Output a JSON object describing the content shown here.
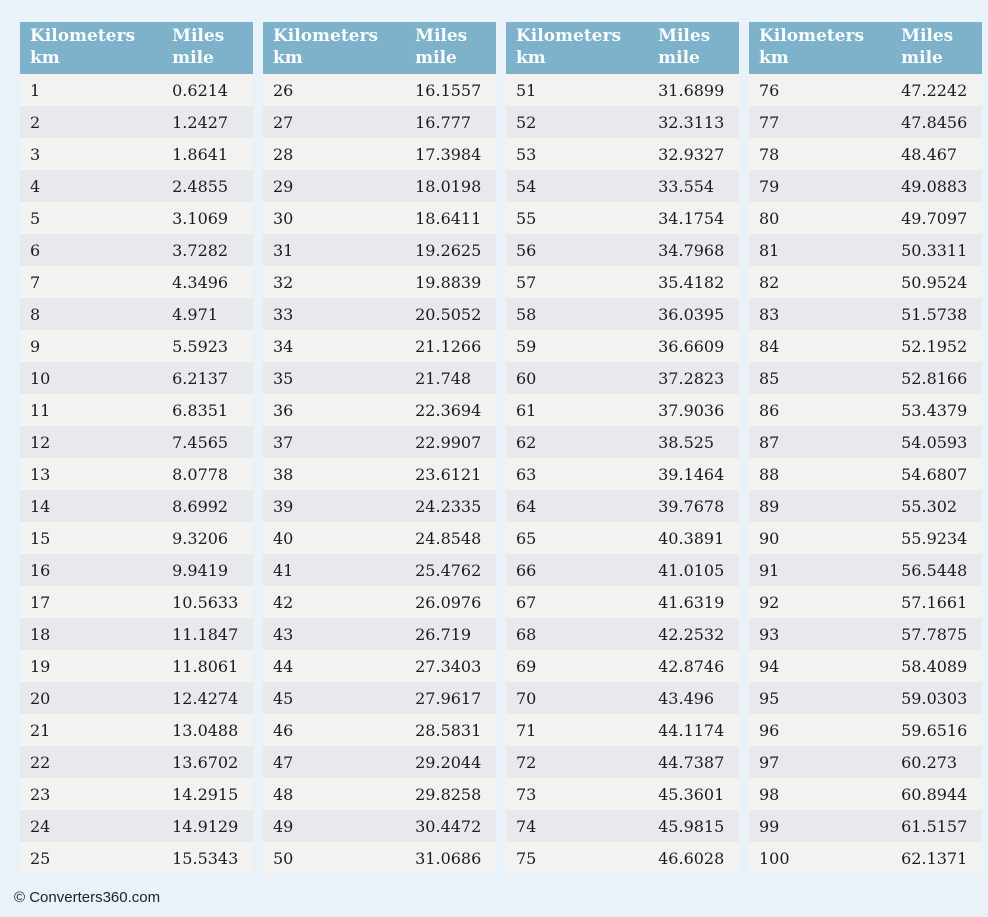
{
  "colors": {
    "page_bg": "#e9f2f8",
    "header_bg": "#7db2ca",
    "header_text": "#fafdfe",
    "row_odd": "#f2f2f0",
    "row_even": "#e8e9ed",
    "cell_text": "#1c1c1c",
    "footer_text": "#222222"
  },
  "column_headers": {
    "kilometers_line1": "Kilometers",
    "kilometers_line2": "km",
    "miles_line1": "Miles",
    "miles_line2": "mile"
  },
  "footer": {
    "copyright_label": "© Converters360.com"
  },
  "tables": [
    {
      "rows": [
        {
          "km": "1",
          "mile": "0.6214"
        },
        {
          "km": "2",
          "mile": "1.2427"
        },
        {
          "km": "3",
          "mile": "1.8641"
        },
        {
          "km": "4",
          "mile": "2.4855"
        },
        {
          "km": "5",
          "mile": "3.1069"
        },
        {
          "km": "6",
          "mile": "3.7282"
        },
        {
          "km": "7",
          "mile": "4.3496"
        },
        {
          "km": "8",
          "mile": "4.971"
        },
        {
          "km": "9",
          "mile": "5.5923"
        },
        {
          "km": "10",
          "mile": "6.2137"
        },
        {
          "km": "11",
          "mile": "6.8351"
        },
        {
          "km": "12",
          "mile": "7.4565"
        },
        {
          "km": "13",
          "mile": "8.0778"
        },
        {
          "km": "14",
          "mile": "8.6992"
        },
        {
          "km": "15",
          "mile": "9.3206"
        },
        {
          "km": "16",
          "mile": "9.9419"
        },
        {
          "km": "17",
          "mile": "10.5633"
        },
        {
          "km": "18",
          "mile": "11.1847"
        },
        {
          "km": "19",
          "mile": "11.8061"
        },
        {
          "km": "20",
          "mile": "12.4274"
        },
        {
          "km": "21",
          "mile": "13.0488"
        },
        {
          "km": "22",
          "mile": "13.6702"
        },
        {
          "km": "23",
          "mile": "14.2915"
        },
        {
          "km": "24",
          "mile": "14.9129"
        },
        {
          "km": "25",
          "mile": "15.5343"
        }
      ]
    },
    {
      "rows": [
        {
          "km": "26",
          "mile": "16.1557"
        },
        {
          "km": "27",
          "mile": "16.777"
        },
        {
          "km": "28",
          "mile": "17.3984"
        },
        {
          "km": "29",
          "mile": "18.0198"
        },
        {
          "km": "30",
          "mile": "18.6411"
        },
        {
          "km": "31",
          "mile": "19.2625"
        },
        {
          "km": "32",
          "mile": "19.8839"
        },
        {
          "km": "33",
          "mile": "20.5052"
        },
        {
          "km": "34",
          "mile": "21.1266"
        },
        {
          "km": "35",
          "mile": "21.748"
        },
        {
          "km": "36",
          "mile": "22.3694"
        },
        {
          "km": "37",
          "mile": "22.9907"
        },
        {
          "km": "38",
          "mile": "23.6121"
        },
        {
          "km": "39",
          "mile": "24.2335"
        },
        {
          "km": "40",
          "mile": "24.8548"
        },
        {
          "km": "41",
          "mile": "25.4762"
        },
        {
          "km": "42",
          "mile": "26.0976"
        },
        {
          "km": "43",
          "mile": "26.719"
        },
        {
          "km": "44",
          "mile": "27.3403"
        },
        {
          "km": "45",
          "mile": "27.9617"
        },
        {
          "km": "46",
          "mile": "28.5831"
        },
        {
          "km": "47",
          "mile": "29.2044"
        },
        {
          "km": "48",
          "mile": "29.8258"
        },
        {
          "km": "49",
          "mile": "30.4472"
        },
        {
          "km": "50",
          "mile": "31.0686"
        }
      ]
    },
    {
      "rows": [
        {
          "km": "51",
          "mile": "31.6899"
        },
        {
          "km": "52",
          "mile": "32.3113"
        },
        {
          "km": "53",
          "mile": "32.9327"
        },
        {
          "km": "54",
          "mile": "33.554"
        },
        {
          "km": "55",
          "mile": "34.1754"
        },
        {
          "km": "56",
          "mile": "34.7968"
        },
        {
          "km": "57",
          "mile": "35.4182"
        },
        {
          "km": "58",
          "mile": "36.0395"
        },
        {
          "km": "59",
          "mile": "36.6609"
        },
        {
          "km": "60",
          "mile": "37.2823"
        },
        {
          "km": "61",
          "mile": "37.9036"
        },
        {
          "km": "62",
          "mile": "38.525"
        },
        {
          "km": "63",
          "mile": "39.1464"
        },
        {
          "km": "64",
          "mile": "39.7678"
        },
        {
          "km": "65",
          "mile": "40.3891"
        },
        {
          "km": "66",
          "mile": "41.0105"
        },
        {
          "km": "67",
          "mile": "41.6319"
        },
        {
          "km": "68",
          "mile": "42.2532"
        },
        {
          "km": "69",
          "mile": "42.8746"
        },
        {
          "km": "70",
          "mile": "43.496"
        },
        {
          "km": "71",
          "mile": "44.1174"
        },
        {
          "km": "72",
          "mile": "44.7387"
        },
        {
          "km": "73",
          "mile": "45.3601"
        },
        {
          "km": "74",
          "mile": "45.9815"
        },
        {
          "km": "75",
          "mile": "46.6028"
        }
      ]
    },
    {
      "rows": [
        {
          "km": "76",
          "mile": "47.2242"
        },
        {
          "km": "77",
          "mile": "47.8456"
        },
        {
          "km": "78",
          "mile": "48.467"
        },
        {
          "km": "79",
          "mile": "49.0883"
        },
        {
          "km": "80",
          "mile": "49.7097"
        },
        {
          "km": "81",
          "mile": "50.3311"
        },
        {
          "km": "82",
          "mile": "50.9524"
        },
        {
          "km": "83",
          "mile": "51.5738"
        },
        {
          "km": "84",
          "mile": "52.1952"
        },
        {
          "km": "85",
          "mile": "52.8166"
        },
        {
          "km": "86",
          "mile": "53.4379"
        },
        {
          "km": "87",
          "mile": "54.0593"
        },
        {
          "km": "88",
          "mile": "54.6807"
        },
        {
          "km": "89",
          "mile": "55.302"
        },
        {
          "km": "90",
          "mile": "55.9234"
        },
        {
          "km": "91",
          "mile": "56.5448"
        },
        {
          "km": "92",
          "mile": "57.1661"
        },
        {
          "km": "93",
          "mile": "57.7875"
        },
        {
          "km": "94",
          "mile": "58.4089"
        },
        {
          "km": "95",
          "mile": "59.0303"
        },
        {
          "km": "96",
          "mile": "59.6516"
        },
        {
          "km": "97",
          "mile": "60.273"
        },
        {
          "km": "98",
          "mile": "60.8944"
        },
        {
          "km": "99",
          "mile": "61.5157"
        },
        {
          "km": "100",
          "mile": "62.1371"
        }
      ]
    }
  ]
}
